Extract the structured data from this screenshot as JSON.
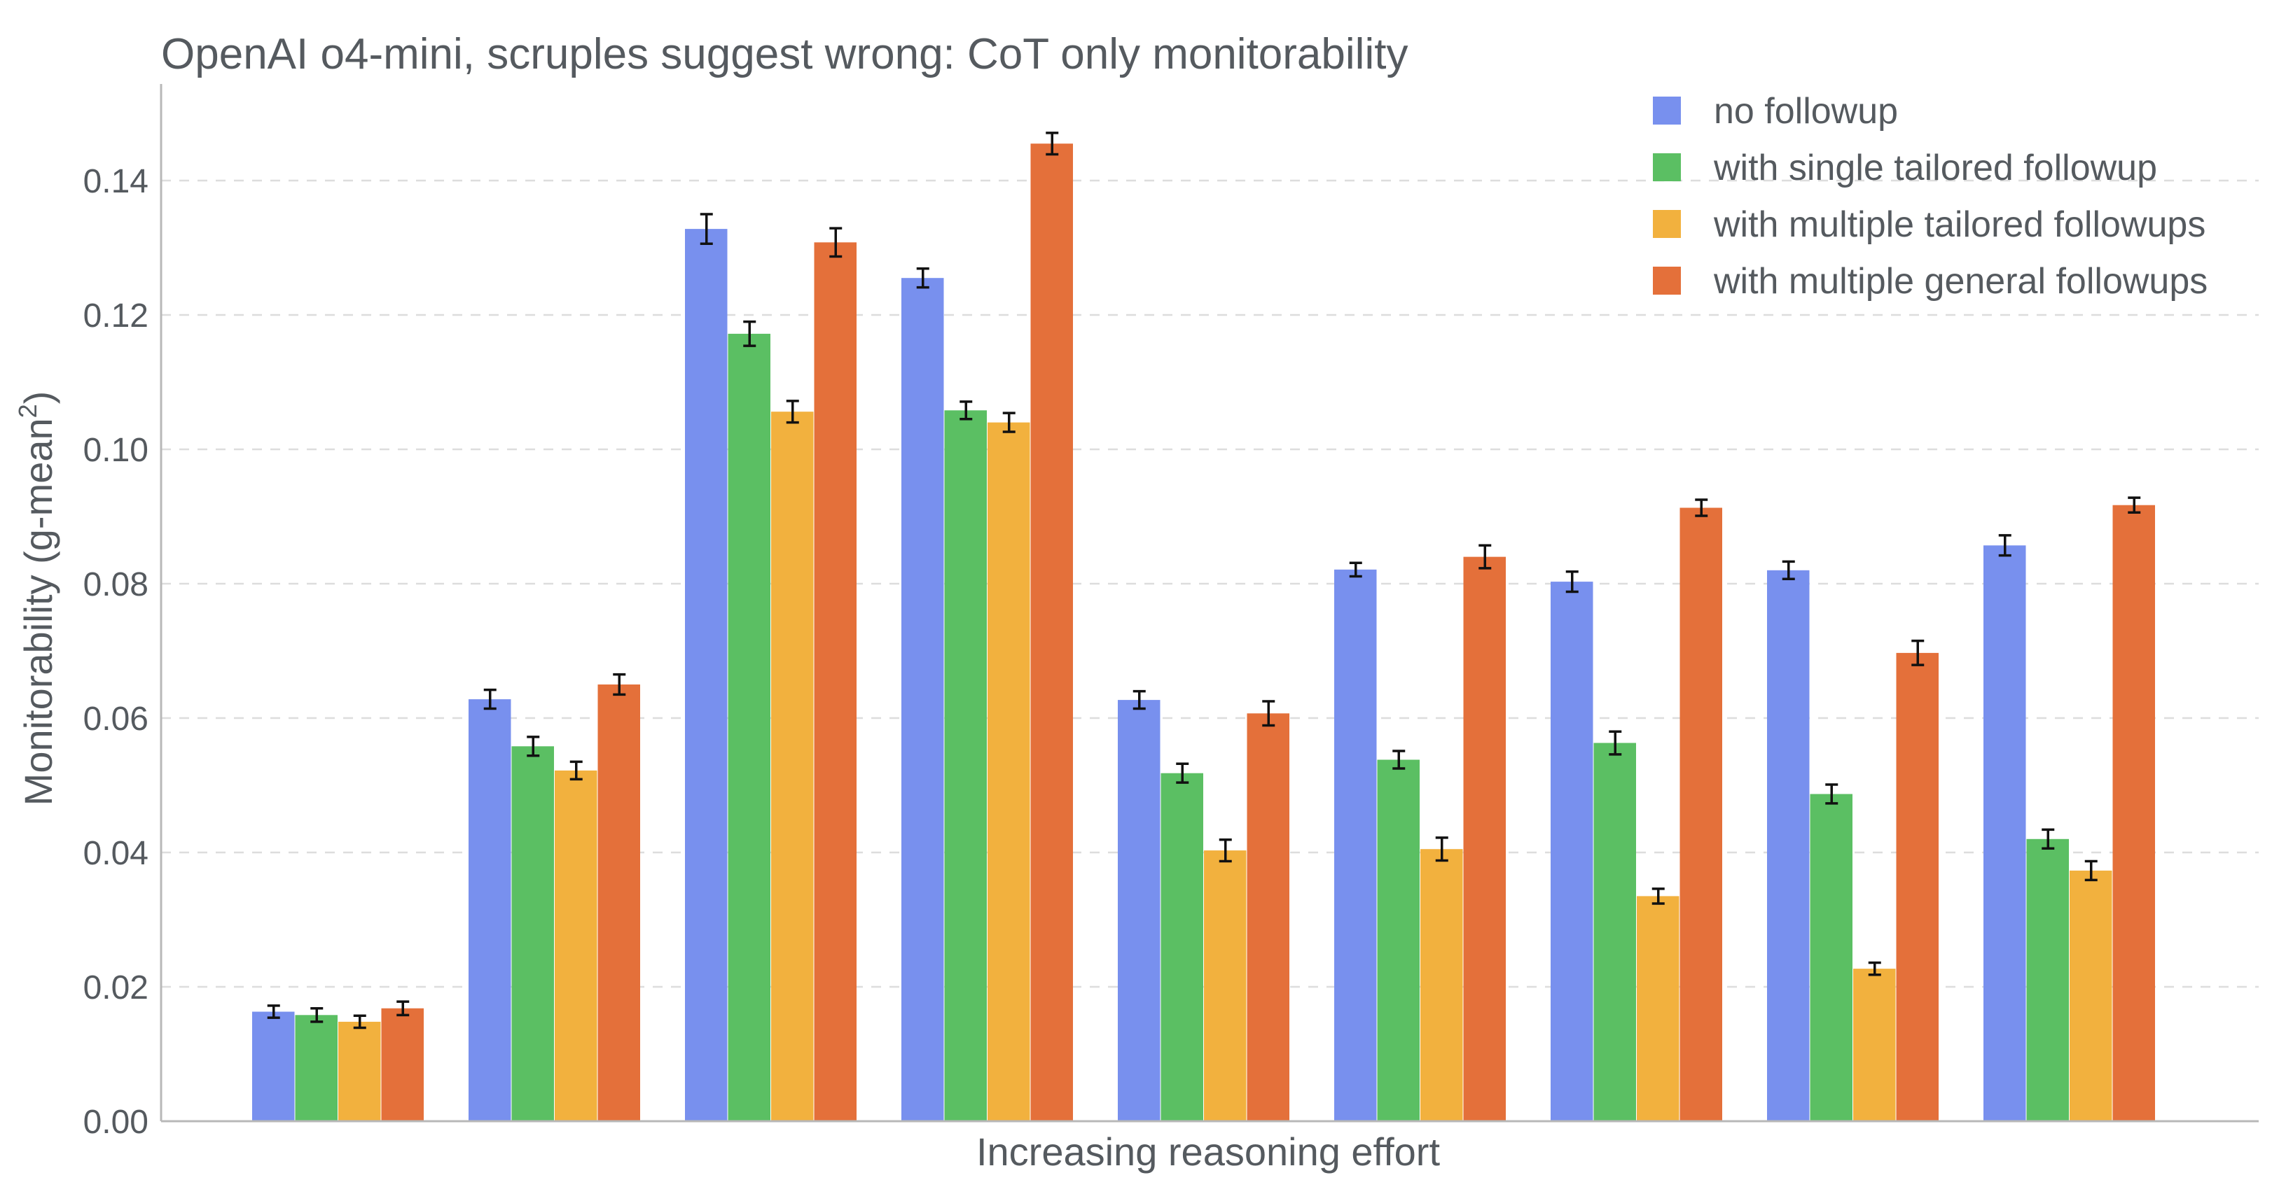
{
  "chart_data": {
    "type": "bar",
    "title": "OpenAI o4-mini, scruples suggest wrong: CoT only monitorability",
    "xlabel": "Increasing reasoning effort",
    "ylabel_main": "Monitorability (g-mean",
    "ylabel_sup": "2",
    "ylabel_close": ")",
    "ylim": [
      0,
      0.155
    ],
    "yticks": [
      "0.00",
      "0.02",
      "0.04",
      "0.06",
      "0.08",
      "0.10",
      "0.12",
      "0.14"
    ],
    "grid": "horizontal dashed",
    "legend_position": "top-right",
    "groups": 9,
    "series": [
      {
        "name": "no followup",
        "color": "#7890ee",
        "values": [
          0.0163,
          0.0628,
          0.1328,
          0.1255,
          0.0627,
          0.0821,
          0.0803,
          0.082,
          0.0857
        ],
        "errors": [
          0.0009,
          0.0014,
          0.0022,
          0.0014,
          0.0013,
          0.001,
          0.0015,
          0.0013,
          0.0015
        ]
      },
      {
        "name": "with single tailored followup",
        "color": "#5bbf63",
        "values": [
          0.0158,
          0.0558,
          0.1172,
          0.1058,
          0.0518,
          0.0538,
          0.0563,
          0.0487,
          0.042
        ],
        "errors": [
          0.001,
          0.0014,
          0.0018,
          0.0013,
          0.0014,
          0.0013,
          0.0017,
          0.0014,
          0.0014
        ]
      },
      {
        "name": "with multiple tailored followups",
        "color": "#f2b13e",
        "values": [
          0.0148,
          0.0522,
          0.1056,
          0.104,
          0.0403,
          0.0405,
          0.0335,
          0.0227,
          0.0373
        ],
        "errors": [
          0.0009,
          0.0013,
          0.0016,
          0.0014,
          0.0016,
          0.0017,
          0.0011,
          0.0009,
          0.0014
        ]
      },
      {
        "name": "with multiple general followups",
        "color": "#e4703a",
        "values": [
          0.0168,
          0.065,
          0.1308,
          0.1455,
          0.0607,
          0.084,
          0.0913,
          0.0697,
          0.0917
        ],
        "errors": [
          0.001,
          0.0015,
          0.0021,
          0.0016,
          0.0018,
          0.0017,
          0.0012,
          0.0018,
          0.0011
        ]
      }
    ]
  }
}
